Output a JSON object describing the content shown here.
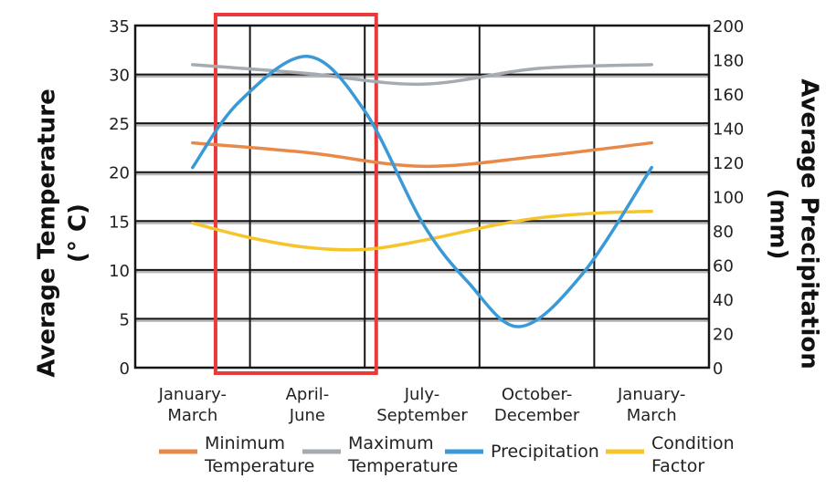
{
  "chart_data": {
    "type": "line",
    "categories": [
      [
        "January-",
        "March"
      ],
      [
        "April-",
        "June"
      ],
      [
        "July-",
        "September"
      ],
      [
        "October-",
        "December"
      ],
      [
        "January-",
        "March"
      ]
    ],
    "y_left": {
      "label_lines": [
        "Average Temperature",
        "(° C)"
      ],
      "range": [
        0,
        35
      ],
      "ticks": [
        0,
        5,
        10,
        15,
        20,
        25,
        30,
        35
      ]
    },
    "y_right": {
      "label_lines": [
        "Average Precipitation",
        "(mm)"
      ],
      "range": [
        0,
        200
      ],
      "ticks": [
        0,
        20,
        40,
        60,
        80,
        100,
        120,
        140,
        160,
        180,
        200
      ]
    },
    "series": [
      {
        "name_lines": [
          "Minimum",
          "Temperature"
        ],
        "axis": "left",
        "color": "#e8894a",
        "x": [
          0,
          1,
          2,
          3,
          4
        ],
        "y": [
          23,
          22,
          20.6,
          21.6,
          23
        ]
      },
      {
        "name_lines": [
          "Maximum",
          "Temperature"
        ],
        "axis": "left",
        "color": "#a5abb0",
        "x": [
          0,
          1,
          2,
          3,
          4
        ],
        "y": [
          31,
          30.1,
          29,
          30.6,
          31
        ]
      },
      {
        "name_lines": [
          "Precipitation"
        ],
        "axis": "right",
        "color": "#3a9ad8",
        "x": [
          0,
          0.4,
          1,
          1.5,
          2,
          2.4,
          2.85,
          3.4,
          4
        ],
        "y": [
          117,
          155,
          182,
          150,
          85,
          50,
          24,
          55,
          117
        ]
      },
      {
        "name_lines": [
          "Condition",
          "Factor"
        ],
        "axis": "left",
        "color": "#f6c42b",
        "x": [
          0,
          0.5,
          1,
          1.5,
          2,
          2.6,
          3,
          3.5,
          4
        ],
        "y": [
          14.8,
          13.3,
          12.3,
          12.1,
          13,
          14.5,
          15.3,
          15.8,
          16
        ]
      }
    ],
    "highlight": {
      "x_from": 0.7,
      "x_to": 2.1,
      "color": "#e83a3a"
    },
    "grid": true
  }
}
